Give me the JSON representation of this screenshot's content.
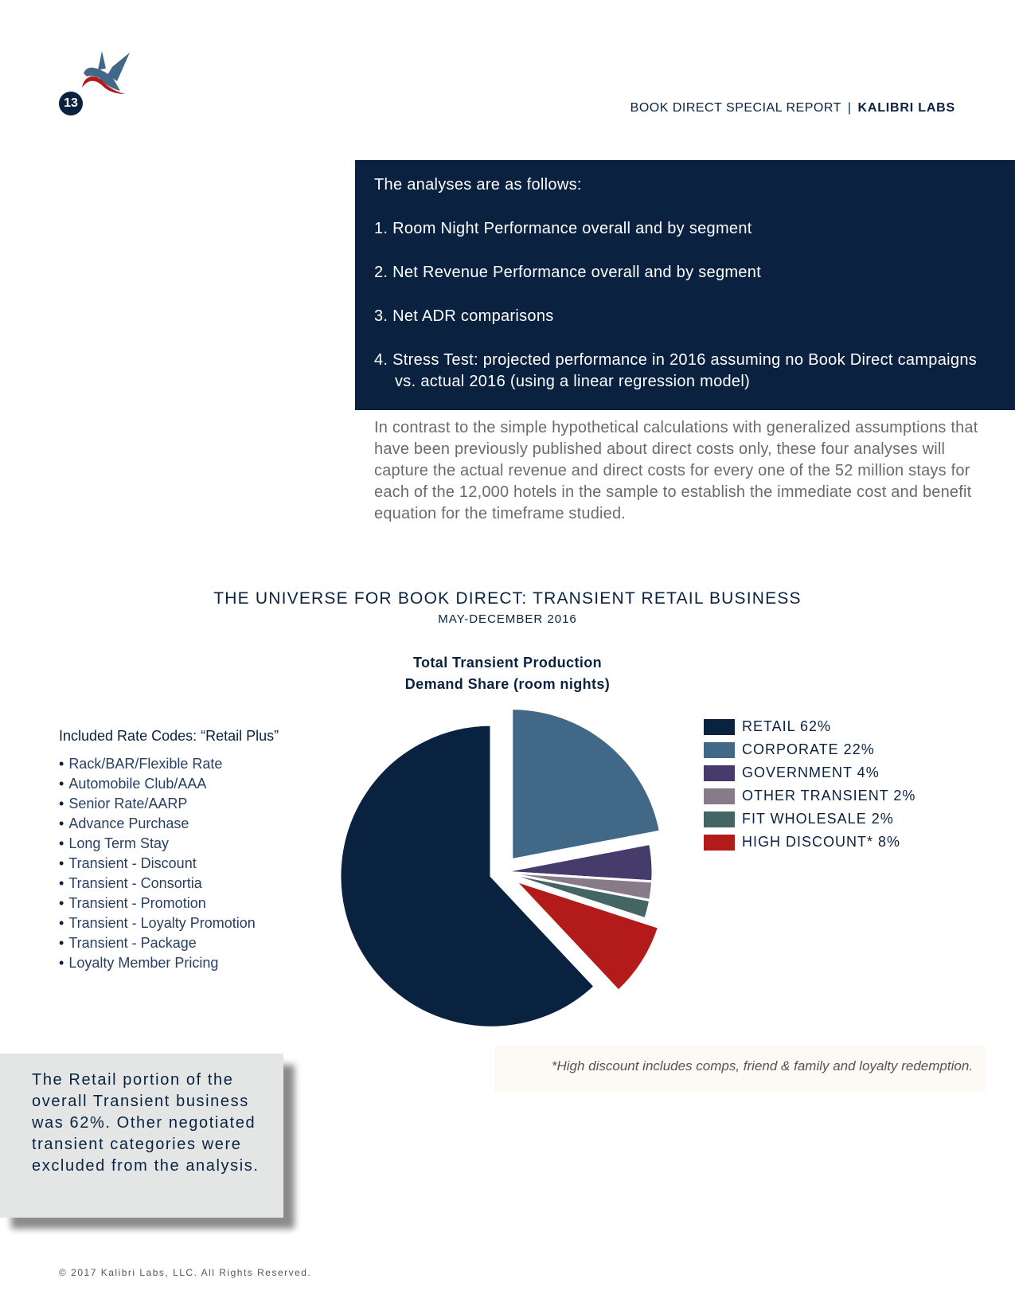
{
  "page_number": "13",
  "header": {
    "report": "BOOK DIRECT SPECIAL REPORT",
    "separator": "|",
    "brand": "KALIBRI LABS"
  },
  "analyses": {
    "intro": "The analyses are as follows:",
    "items": [
      "1. Room Night Performance overall and by segment",
      "2. Net Revenue Performance overall and by segment",
      "3. Net ADR comparisons",
      "4. Stress Test: projected performance in 2016 assuming no Book Direct campaigns vs. actual 2016  (using a linear regression model)"
    ]
  },
  "paragraph": "In contrast to the simple hypothetical calculations with generalized assumptions that have been previously published about direct costs only, these four analyses will capture the actual revenue and direct costs for every one of the 52 million stays for each of the 12,000 hotels in the sample to establish the immediate cost and benefit equation for the timeframe studied.",
  "section": {
    "title": "THE UNIVERSE FOR BOOK DIRECT: TRANSIENT RETAIL BUSINESS",
    "subtitle": "MAY-DECEMBER 2016"
  },
  "rate_codes": {
    "heading": "Included Rate Codes: “Retail Plus”",
    "items": [
      "Rack/BAR/Flexible Rate",
      "Automobile Club/AAA",
      "Senior Rate/AARP",
      "Advance Purchase",
      "Long Term Stay",
      "Transient - Discount",
      "Transient - Consortia",
      "Transient - Promotion",
      "Transient - Loyalty Promotion",
      "Transient - Package",
      "Loyalty Member Pricing"
    ]
  },
  "chart_data": {
    "type": "pie",
    "title": "Total Transient Production Demand Share (room nights)",
    "title_lines": [
      "Total Transient Production",
      "Demand Share (room nights)"
    ],
    "legend_placement": "right",
    "slices": [
      {
        "label": "CORPORATE 22%",
        "value": 22,
        "color": "#426887",
        "exploded": true
      },
      {
        "label": "GOVERNMENT 4%",
        "value": 4,
        "color": "#463c6c",
        "exploded": false
      },
      {
        "label": "OTHER TRANSIENT 2%",
        "value": 2,
        "color": "#877a89",
        "exploded": false
      },
      {
        "label": "FIT WHOLESALE 2%",
        "value": 2,
        "color": "#436664",
        "exploded": false
      },
      {
        "label": "HIGH DISCOUNT* 8%",
        "value": 8,
        "color": "#b31b1b",
        "exploded": true
      },
      {
        "label": "RETAIL 62%",
        "value": 62,
        "color": "#082240",
        "exploded": true
      }
    ],
    "legend_order": [
      5,
      0,
      1,
      2,
      3,
      4
    ]
  },
  "callout": "The Retail portion of the overall Transient business was 62%. Other negotiated transient categories were excluded from the analysis.",
  "footnote": "*High discount includes comps, friend & family and loyalty redemption.",
  "copyright": "© 2017 Kalibri Labs, LLC. All Rights Reserved.",
  "colors": {
    "navy": "#0a2240",
    "logo_blue": "#426887",
    "logo_red": "#b31b1b",
    "callout_bg": "#e4e6e6",
    "footnote_bg": "#fdf9f4"
  }
}
